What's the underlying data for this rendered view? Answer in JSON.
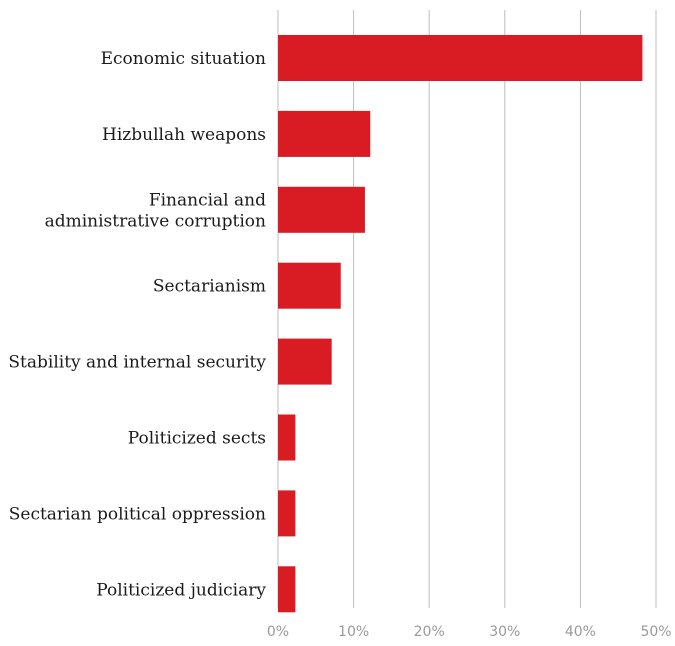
{
  "chart_data": {
    "type": "bar",
    "orientation": "horizontal",
    "categories": [
      "Economic situation",
      "Hizbullah weapons",
      "Financial and administrative corruption",
      "Sectarianism",
      "Stability and internal security",
      "Politicized sects",
      "Sectarian political oppression",
      "Politicized judiciary"
    ],
    "category_lines": [
      [
        "Economic situation"
      ],
      [
        "Hizbullah weapons"
      ],
      [
        "Financial and",
        "administrative corruption"
      ],
      [
        "Sectarianism"
      ],
      [
        "Stability and internal security"
      ],
      [
        "Politicized sects"
      ],
      [
        "Sectarian political oppression"
      ],
      [
        "Politicized judiciary"
      ]
    ],
    "values": [
      48.2,
      12.2,
      11.5,
      8.3,
      7.1,
      2.3,
      2.3,
      2.3
    ],
    "xlim": [
      0,
      50
    ],
    "x_ticks": [
      0,
      10,
      20,
      30,
      40,
      50
    ],
    "x_tick_labels": [
      "0%",
      "10%",
      "20%",
      "30%",
      "40%",
      "50%"
    ],
    "grid": "vertical",
    "bar_color": "#d91c23"
  }
}
